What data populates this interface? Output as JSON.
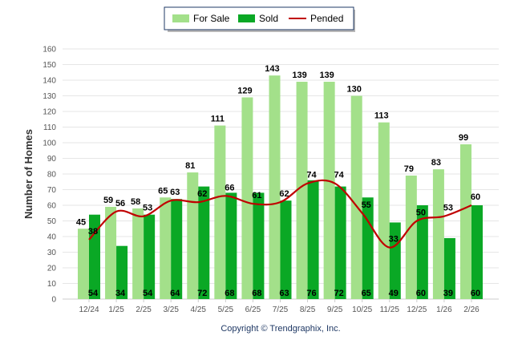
{
  "chart_data": {
    "type": "bar",
    "ylabel": "Number of Homes",
    "ylim": [
      0,
      160
    ],
    "yticks": [
      0,
      10,
      20,
      30,
      40,
      50,
      60,
      70,
      80,
      90,
      100,
      110,
      120,
      130,
      140,
      150,
      160
    ],
    "grid": true,
    "legend_position": "top-center",
    "categories": [
      "12/24",
      "1/25",
      "2/25",
      "3/25",
      "4/25",
      "5/25",
      "6/25",
      "7/25",
      "8/25",
      "9/25",
      "10/25",
      "11/25",
      "12/25",
      "1/26",
      "2/26"
    ],
    "series": [
      {
        "name": "For Sale",
        "type": "bar",
        "color": "#a3e08a",
        "values": [
          45,
          59,
          58,
          65,
          81,
          111,
          129,
          143,
          139,
          139,
          130,
          113,
          79,
          83,
          99
        ]
      },
      {
        "name": "Sold",
        "type": "bar",
        "color": "#0aa825",
        "values": [
          54,
          34,
          54,
          64,
          72,
          68,
          68,
          63,
          76,
          72,
          65,
          49,
          60,
          39,
          60
        ]
      },
      {
        "name": "Pended",
        "type": "line",
        "color": "#c00000",
        "values": [
          38,
          56,
          53,
          63,
          62,
          66,
          61,
          62,
          74,
          74,
          55,
          33,
          50,
          53,
          60
        ]
      }
    ]
  },
  "footer": {
    "copyright": "Copyright © Trendgraphix, Inc."
  }
}
